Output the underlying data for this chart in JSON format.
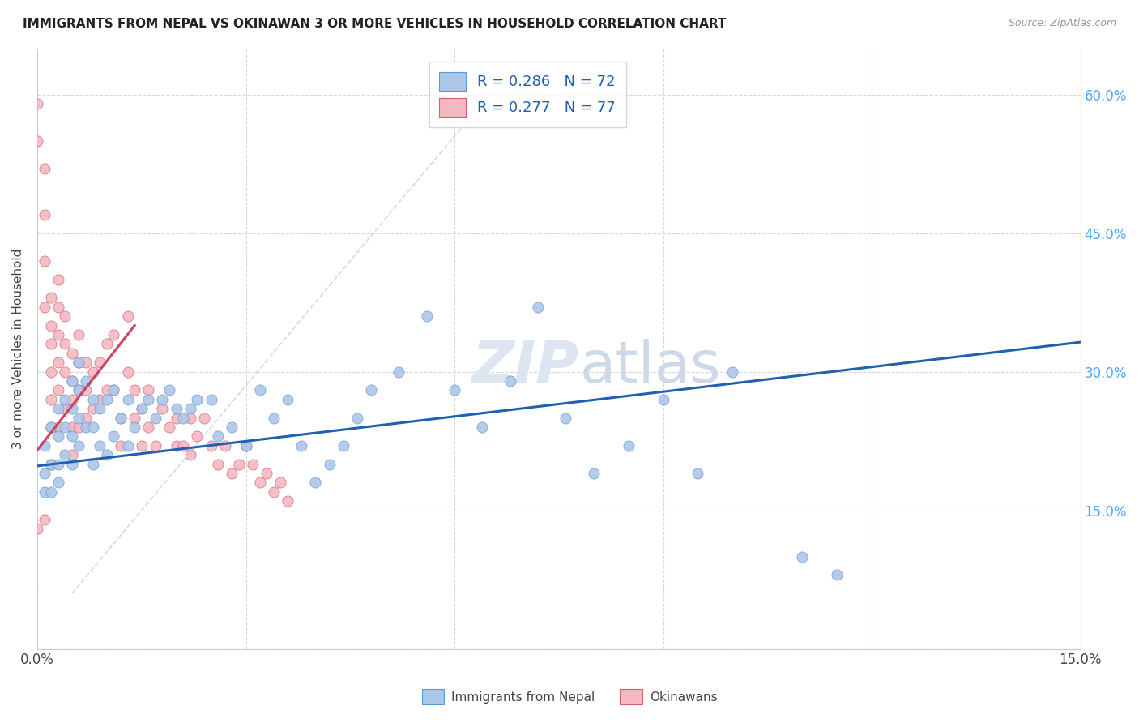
{
  "title": "IMMIGRANTS FROM NEPAL VS OKINAWAN 3 OR MORE VEHICLES IN HOUSEHOLD CORRELATION CHART",
  "source": "Source: ZipAtlas.com",
  "ylabel": "3 or more Vehicles in Household",
  "xlim": [
    0.0,
    0.15
  ],
  "ylim": [
    0.0,
    0.65
  ],
  "nepal_color": "#aec6e8",
  "nepal_edge_color": "#5b9bd5",
  "okinawa_color": "#f4b8c1",
  "okinawa_edge_color": "#d45f6e",
  "nepal_trend_color": "#2060b0",
  "okinawa_trend_color": "#d04060",
  "ref_line_color": "#c8c8d0",
  "legend_label_1": "R = 0.286   N = 72",
  "legend_label_2": "R = 0.277   N = 77",
  "legend_bottom_1": "Immigrants from Nepal",
  "legend_bottom_2": "Okinawans",
  "nepal_x": [
    0.001,
    0.001,
    0.001,
    0.002,
    0.002,
    0.002,
    0.003,
    0.003,
    0.003,
    0.003,
    0.004,
    0.004,
    0.004,
    0.005,
    0.005,
    0.005,
    0.005,
    0.006,
    0.006,
    0.006,
    0.006,
    0.007,
    0.007,
    0.008,
    0.008,
    0.008,
    0.009,
    0.009,
    0.01,
    0.01,
    0.011,
    0.011,
    0.012,
    0.013,
    0.013,
    0.014,
    0.015,
    0.016,
    0.017,
    0.018,
    0.019,
    0.02,
    0.021,
    0.022,
    0.023,
    0.025,
    0.026,
    0.028,
    0.03,
    0.032,
    0.034,
    0.036,
    0.038,
    0.04,
    0.042,
    0.044,
    0.046,
    0.048,
    0.052,
    0.056,
    0.06,
    0.064,
    0.068,
    0.072,
    0.076,
    0.08,
    0.085,
    0.09,
    0.095,
    0.1,
    0.11,
    0.115
  ],
  "nepal_y": [
    0.22,
    0.19,
    0.17,
    0.24,
    0.2,
    0.17,
    0.26,
    0.23,
    0.2,
    0.18,
    0.27,
    0.24,
    0.21,
    0.29,
    0.26,
    0.23,
    0.2,
    0.31,
    0.28,
    0.25,
    0.22,
    0.29,
    0.24,
    0.27,
    0.24,
    0.2,
    0.26,
    0.22,
    0.27,
    0.21,
    0.28,
    0.23,
    0.25,
    0.27,
    0.22,
    0.24,
    0.26,
    0.27,
    0.25,
    0.27,
    0.28,
    0.26,
    0.25,
    0.26,
    0.27,
    0.27,
    0.23,
    0.24,
    0.22,
    0.28,
    0.25,
    0.27,
    0.22,
    0.18,
    0.2,
    0.22,
    0.25,
    0.28,
    0.3,
    0.36,
    0.28,
    0.24,
    0.29,
    0.37,
    0.25,
    0.19,
    0.22,
    0.27,
    0.19,
    0.3,
    0.1,
    0.08
  ],
  "okinawa_x": [
    0.0,
    0.0,
    0.0,
    0.001,
    0.001,
    0.001,
    0.001,
    0.001,
    0.002,
    0.002,
    0.002,
    0.002,
    0.002,
    0.002,
    0.002,
    0.003,
    0.003,
    0.003,
    0.003,
    0.003,
    0.003,
    0.004,
    0.004,
    0.004,
    0.004,
    0.005,
    0.005,
    0.005,
    0.005,
    0.005,
    0.006,
    0.006,
    0.006,
    0.006,
    0.007,
    0.007,
    0.007,
    0.008,
    0.008,
    0.009,
    0.009,
    0.01,
    0.01,
    0.011,
    0.011,
    0.012,
    0.012,
    0.013,
    0.013,
    0.014,
    0.014,
    0.015,
    0.015,
    0.016,
    0.016,
    0.017,
    0.018,
    0.019,
    0.02,
    0.02,
    0.021,
    0.022,
    0.022,
    0.023,
    0.024,
    0.025,
    0.026,
    0.027,
    0.028,
    0.029,
    0.03,
    0.031,
    0.032,
    0.033,
    0.034,
    0.035,
    0.036
  ],
  "okinawa_y": [
    0.59,
    0.55,
    0.13,
    0.52,
    0.47,
    0.42,
    0.37,
    0.14,
    0.38,
    0.35,
    0.33,
    0.3,
    0.27,
    0.24,
    0.2,
    0.4,
    0.37,
    0.34,
    0.31,
    0.28,
    0.24,
    0.36,
    0.33,
    0.3,
    0.26,
    0.32,
    0.29,
    0.27,
    0.24,
    0.21,
    0.34,
    0.31,
    0.28,
    0.24,
    0.31,
    0.28,
    0.25,
    0.3,
    0.26,
    0.31,
    0.27,
    0.33,
    0.28,
    0.34,
    0.28,
    0.25,
    0.22,
    0.36,
    0.3,
    0.28,
    0.25,
    0.26,
    0.22,
    0.28,
    0.24,
    0.22,
    0.26,
    0.24,
    0.25,
    0.22,
    0.22,
    0.25,
    0.21,
    0.23,
    0.25,
    0.22,
    0.2,
    0.22,
    0.19,
    0.2,
    0.22,
    0.2,
    0.18,
    0.19,
    0.17,
    0.18,
    0.16
  ],
  "nepal_trend_x0": 0.0,
  "nepal_trend_y0": 0.198,
  "nepal_trend_x1": 0.15,
  "nepal_trend_y1": 0.332,
  "okinawa_trend_x0": 0.0,
  "okinawa_trend_y0": 0.215,
  "okinawa_trend_x1": 0.014,
  "okinawa_trend_y1": 0.35,
  "ref_line_x0": 0.005,
  "ref_line_y0": 0.06,
  "ref_line_x1": 0.065,
  "ref_line_y1": 0.6
}
